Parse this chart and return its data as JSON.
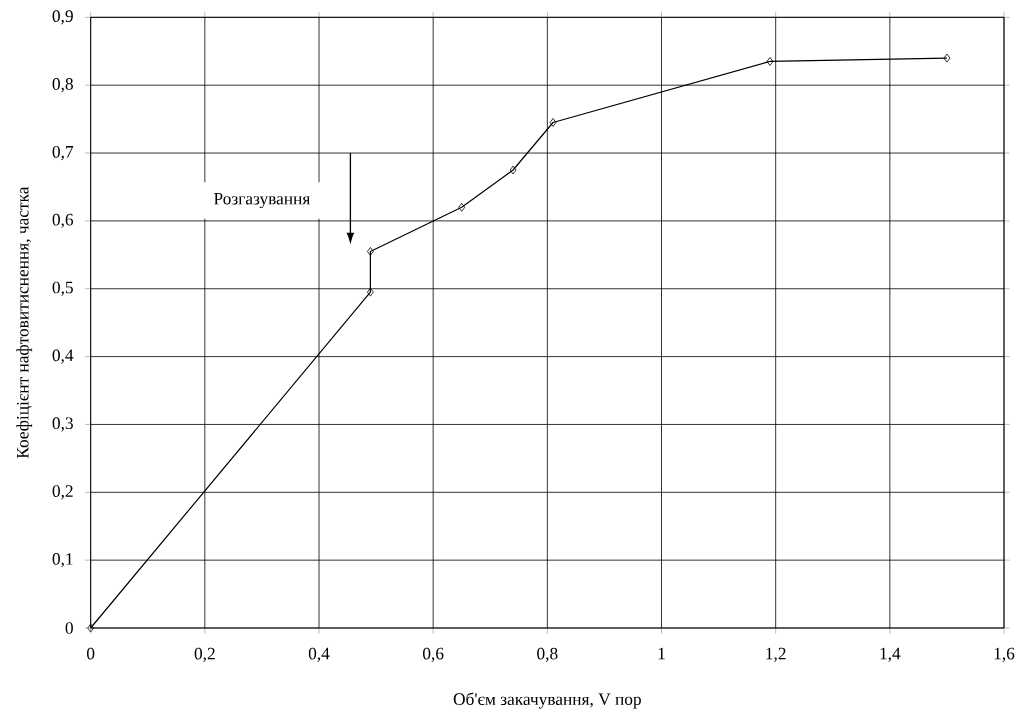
{
  "chart_data": {
    "type": "line",
    "xlabel": "Об'єм закачування,  V пор",
    "ylabel": "Коефіцієнт нафтовитиснення, частка",
    "x": [
      0,
      0.49,
      0.49,
      0.65,
      0.74,
      0.81,
      1.19,
      1.5
    ],
    "values": [
      0,
      0.495,
      0.555,
      0.62,
      0.675,
      0.745,
      0.835,
      0.84
    ],
    "color": "#000000",
    "marker": "diamond",
    "line_style": "solid",
    "grid": true,
    "xlim": [
      0,
      1.6
    ],
    "ylim": [
      0,
      0.9
    ],
    "xticks": [
      0,
      {
        "value": 0.2,
        "label": "0,2"
      },
      {
        "value": 0.4,
        "label": "0,4"
      },
      {
        "value": 0.6,
        "label": "0,6"
      },
      {
        "value": 0.8,
        "label": "0,8"
      },
      1,
      {
        "value": 1.2,
        "label": "1,2"
      },
      {
        "value": 1.4,
        "label": "1,4"
      },
      {
        "value": 1.6,
        "label": "1,6"
      }
    ],
    "yticks": [
      0,
      {
        "value": 0.1,
        "label": "0,1"
      },
      {
        "value": 0.2,
        "label": "0,2"
      },
      {
        "value": 0.3,
        "label": "0,3"
      },
      {
        "value": 0.4,
        "label": "0,4"
      },
      {
        "value": 0.5,
        "label": "0,5"
      },
      {
        "value": 0.6,
        "label": "0,6"
      },
      {
        "value": 0.7,
        "label": "0,7"
      },
      {
        "value": 0.8,
        "label": "0,8"
      },
      {
        "value": 0.9,
        "label": "0,9"
      }
    ],
    "annotations": [
      "Розгазування"
    ]
  }
}
